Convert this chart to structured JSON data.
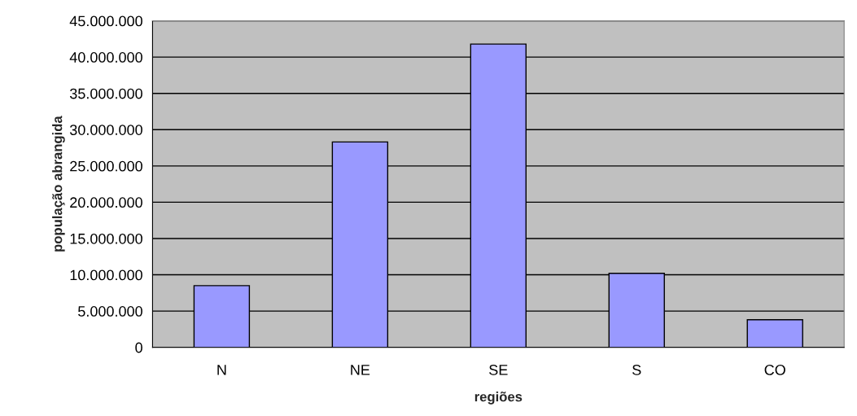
{
  "chart_data": {
    "type": "bar",
    "xlabel": "regiões",
    "ylabel": "população abrangida",
    "categories": [
      "N",
      "NE",
      "SE",
      "S",
      "CO"
    ],
    "values": [
      8500000,
      28300000,
      41800000,
      10200000,
      3800000
    ],
    "color": "#9999ff",
    "ylim": [
      0,
      45000000
    ],
    "yticks": [
      {
        "value": 0,
        "label": "0"
      },
      {
        "value": 5000000,
        "label": "5.000.000"
      },
      {
        "value": 10000000,
        "label": "10.000.000"
      },
      {
        "value": 15000000,
        "label": "15.000.000"
      },
      {
        "value": 20000000,
        "label": "20.000.000"
      },
      {
        "value": 25000000,
        "label": "25.000.000"
      },
      {
        "value": 30000000,
        "label": "30.000.000"
      },
      {
        "value": 35000000,
        "label": "35.000.000"
      },
      {
        "value": 40000000,
        "label": "40.000.000"
      },
      {
        "value": 45000000,
        "label": "45.000.000"
      }
    ],
    "grid": "y",
    "legend": false
  }
}
